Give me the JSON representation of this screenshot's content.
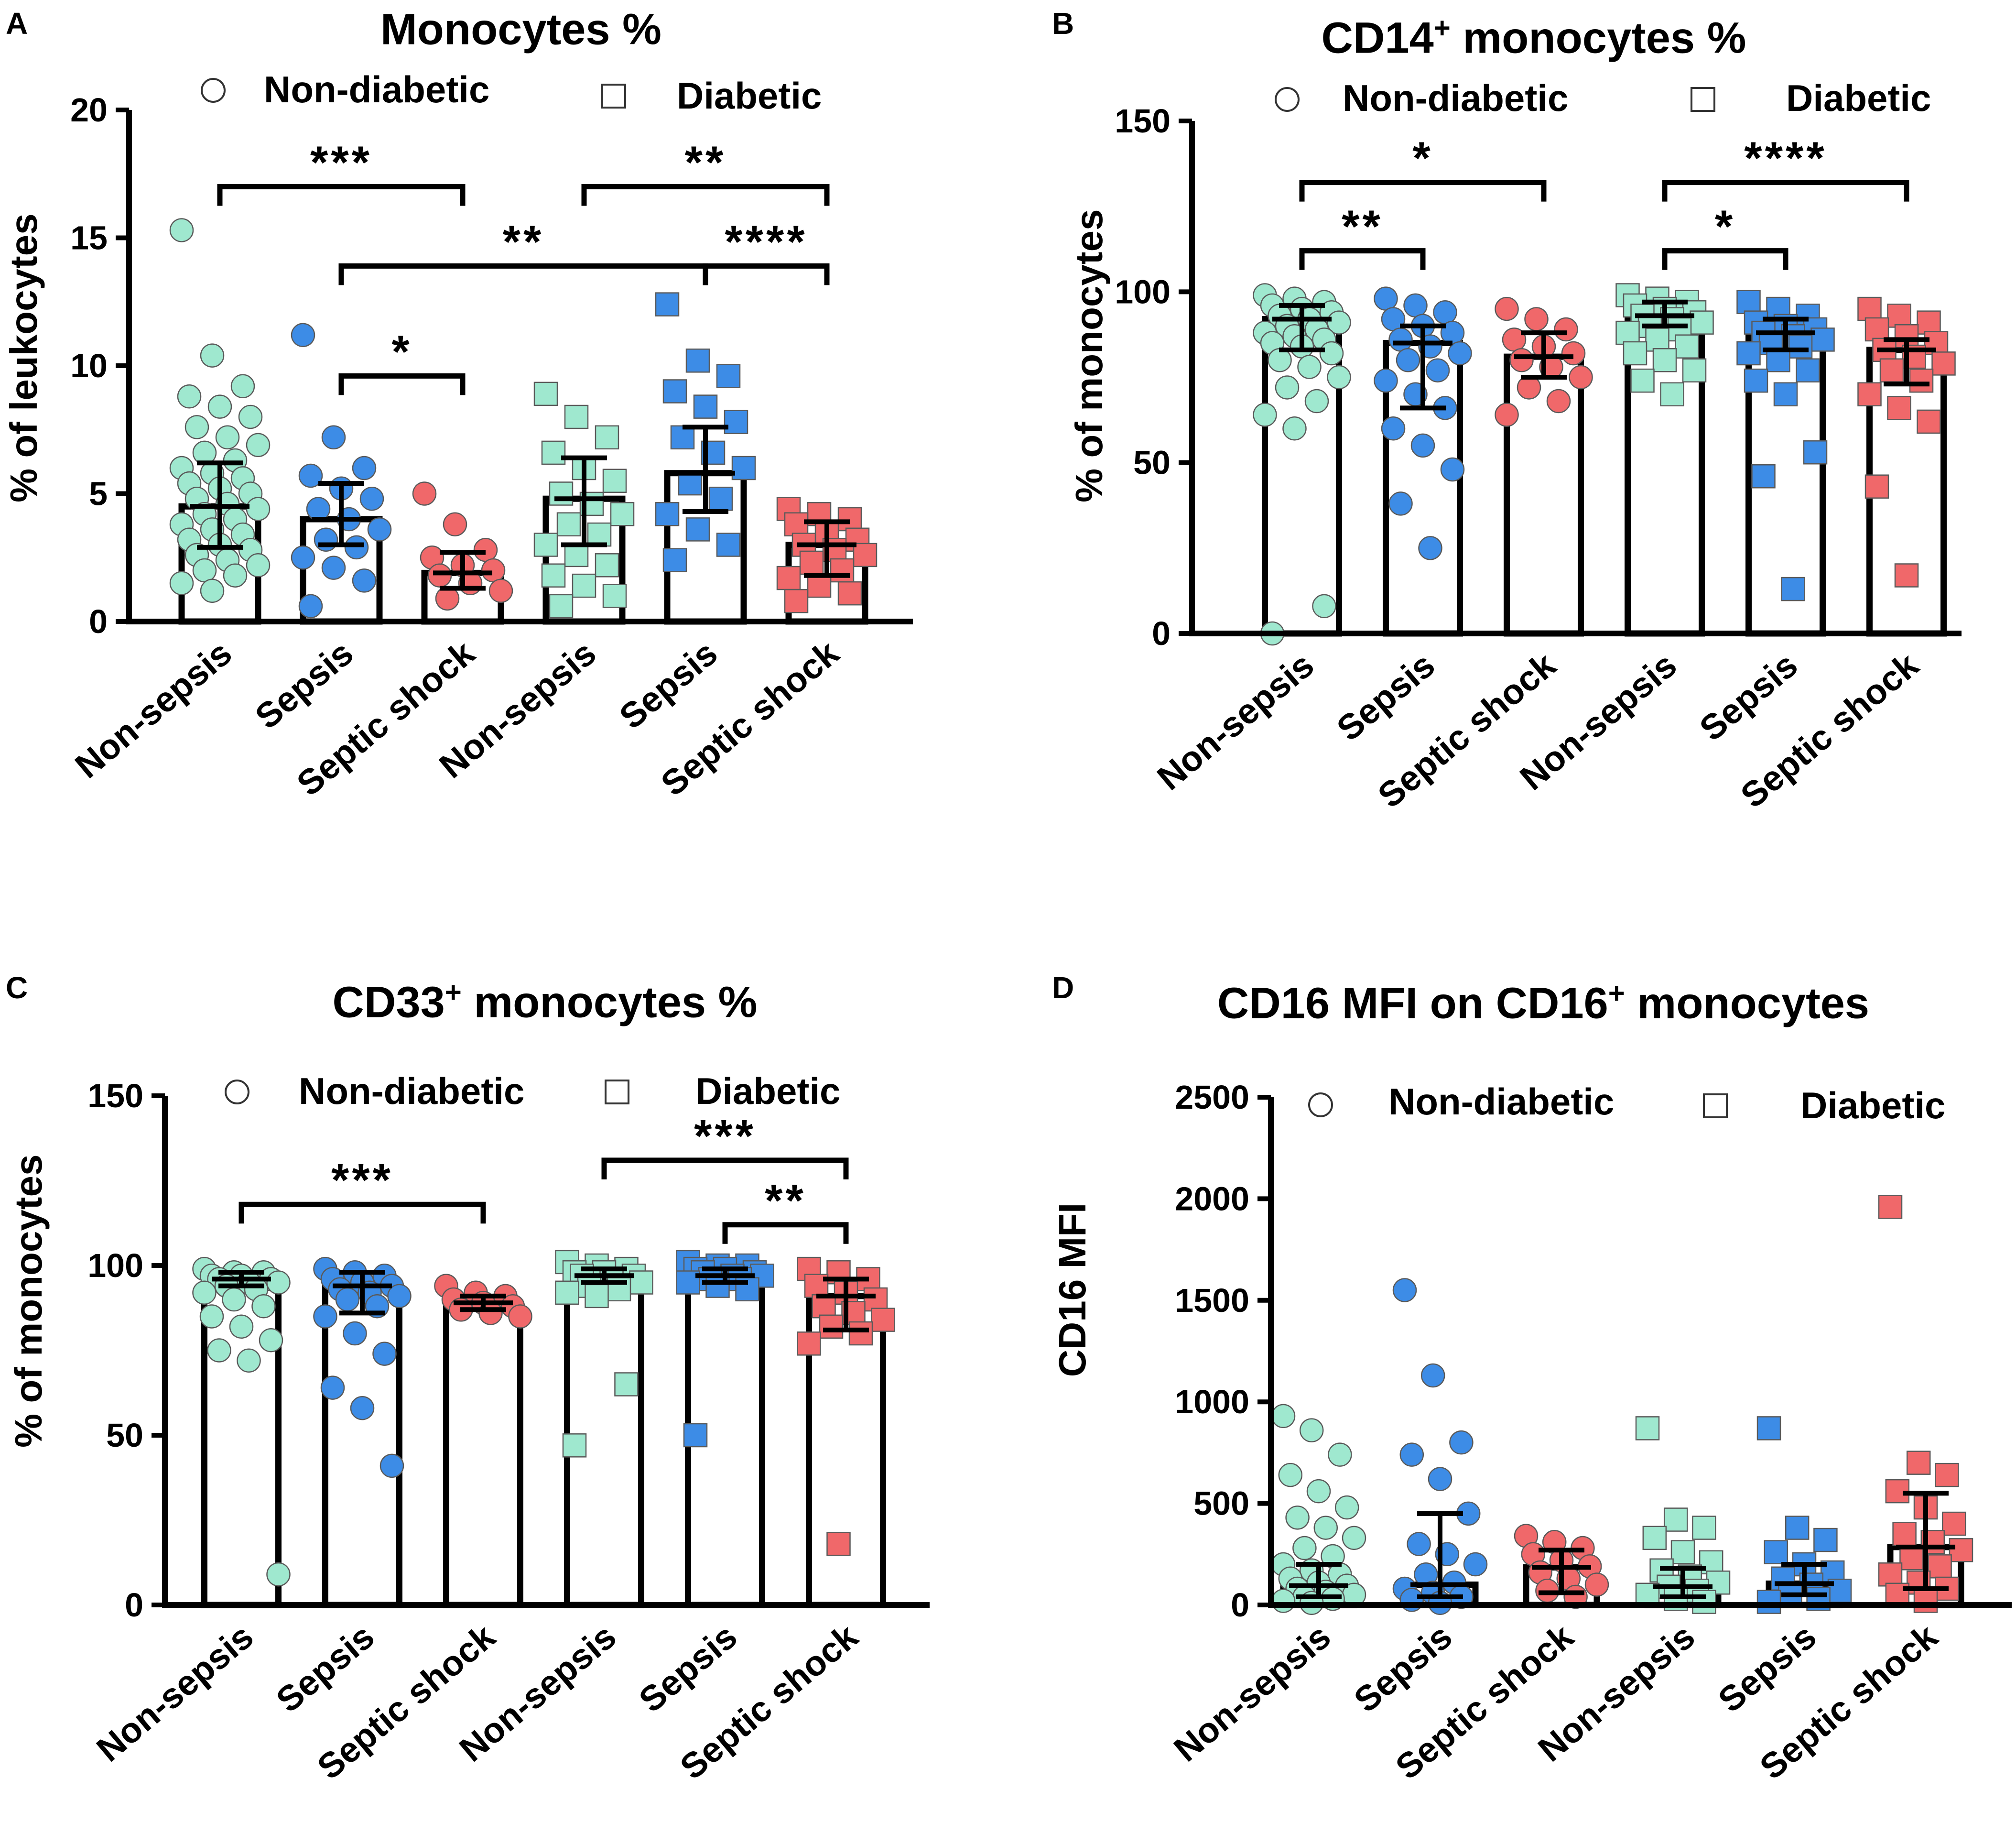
{
  "colors": {
    "non_sepsis": "#9FE8CF",
    "sepsis": "#3D8CE6",
    "septic_shock": "#F0686A",
    "axis": "#000000",
    "marker_edge": "#5a5a5a"
  },
  "legend": {
    "non_diabetic": "Non-diabetic",
    "diabetic": "Diabetic"
  },
  "chart_data": [
    {
      "panel": "A",
      "type": "bar",
      "title": "Monocytes %",
      "title_sup": "",
      "title_suffix": "",
      "ylabel": "% of leukocytes",
      "xlabel": "",
      "ylim": [
        0,
        20
      ],
      "yticks": [
        0,
        5,
        10,
        15,
        20
      ],
      "categories": [
        "Non-sepsis",
        "Sepsis",
        "Septic shock",
        "Non-sepsis",
        "Sepsis",
        "Septic shock"
      ],
      "groups": [
        "Non-diabetic",
        "Non-diabetic",
        "Non-diabetic",
        "Diabetic",
        "Diabetic",
        "Diabetic"
      ],
      "values": [
        4.5,
        4.0,
        1.9,
        4.8,
        5.8,
        3.0
      ],
      "error_low": [
        2.9,
        3.0,
        1.3,
        3.0,
        4.3,
        1.8
      ],
      "error_high": [
        6.2,
        5.4,
        2.7,
        6.4,
        7.6,
        3.9
      ],
      "points": [
        [
          15.3,
          10.4,
          9.2,
          8.8,
          8.4,
          8.0,
          7.6,
          7.2,
          6.9,
          6.6,
          6.3,
          6.0,
          5.8,
          5.6,
          5.4,
          5.2,
          5.0,
          4.8,
          4.6,
          4.4,
          4.2,
          4.0,
          3.8,
          3.6,
          3.4,
          3.2,
          3.0,
          2.8,
          2.6,
          2.4,
          2.2,
          2.0,
          1.8,
          1.5,
          1.2
        ],
        [
          11.2,
          7.2,
          6.0,
          5.7,
          5.2,
          4.8,
          4.4,
          4.0,
          3.6,
          3.2,
          2.9,
          2.5,
          2.1,
          1.6,
          0.6
        ],
        [
          5.0,
          3.8,
          2.8,
          2.5,
          2.2,
          2.0,
          1.8,
          1.5,
          1.2,
          0.9
        ],
        [
          8.9,
          8.0,
          7.2,
          6.6,
          6.0,
          5.5,
          5.0,
          4.6,
          4.2,
          3.8,
          3.4,
          3.0,
          2.6,
          2.2,
          1.8,
          1.4,
          1.0,
          0.6
        ],
        [
          12.4,
          10.2,
          9.6,
          9.0,
          8.4,
          7.8,
          7.2,
          6.6,
          6.0,
          5.4,
          4.8,
          4.2,
          3.6,
          3.0,
          2.4
        ],
        [
          4.4,
          4.2,
          4.0,
          3.8,
          3.5,
          3.2,
          3.0,
          2.8,
          2.6,
          2.3,
          2.0,
          1.7,
          1.4,
          1.1,
          0.8
        ]
      ],
      "annotations": [
        {
          "from": 0,
          "to": 2,
          "label": "***",
          "level": 17
        },
        {
          "from": 3,
          "to": 5,
          "label": "**",
          "level": 17
        },
        {
          "from": 1,
          "to": 4,
          "label": "**",
          "level": 13.9
        },
        {
          "from": 4,
          "to": 5,
          "label": "****",
          "level": 13.9
        },
        {
          "from": 1,
          "to": 2,
          "label": "*",
          "level": 9.6
        }
      ]
    },
    {
      "panel": "B",
      "type": "bar",
      "title": "CD14",
      "title_sup": "+",
      "title_suffix": " monocytes %",
      "ylabel": "% of monocytes",
      "xlabel": "",
      "ylim": [
        0,
        150
      ],
      "yticks": [
        0,
        50,
        100,
        150
      ],
      "categories": [
        "Non-sepsis",
        "Sepsis",
        "Septic shock",
        "Non-sepsis",
        "Sepsis",
        "Septic shock"
      ],
      "groups": [
        "Non-diabetic",
        "Non-diabetic",
        "Non-diabetic",
        "Diabetic",
        "Diabetic",
        "Diabetic"
      ],
      "values": [
        92,
        85,
        81,
        93,
        88,
        83
      ],
      "error_low": [
        83,
        66,
        75,
        90,
        83,
        73
      ],
      "error_high": [
        96,
        90,
        88,
        97,
        92,
        86
      ],
      "points": [
        [
          99,
          98,
          97,
          96,
          95,
          94,
          93,
          92,
          91,
          90,
          89,
          88,
          87,
          86,
          85,
          84,
          82,
          80,
          78,
          75,
          72,
          68,
          64,
          60,
          8,
          0
        ],
        [
          98,
          96,
          94,
          92,
          90,
          88,
          86,
          84,
          82,
          80,
          77,
          74,
          70,
          66,
          60,
          55,
          48,
          38,
          25
        ],
        [
          95,
          92,
          89,
          86,
          84,
          82,
          80,
          78,
          75,
          72,
          68,
          64
        ],
        [
          99,
          98,
          97,
          96,
          95,
          94,
          93,
          92,
          91,
          90,
          89,
          88,
          86,
          84,
          82,
          80,
          77,
          74,
          70
        ],
        [
          97,
          95,
          93,
          91,
          90,
          89,
          88,
          87,
          86,
          85,
          84,
          82,
          80,
          77,
          74,
          70,
          53,
          46,
          13
        ],
        [
          95,
          93,
          91,
          89,
          87,
          85,
          83,
          81,
          79,
          77,
          74,
          70,
          66,
          62,
          43,
          17
        ]
      ],
      "annotations": [
        {
          "from": 0,
          "to": 2,
          "label": "*",
          "level": 132
        },
        {
          "from": 3,
          "to": 5,
          "label": "****",
          "level": 132
        },
        {
          "from": 0,
          "to": 1,
          "label": "**",
          "level": 112
        },
        {
          "from": 3,
          "to": 4,
          "label": "*",
          "level": 112
        }
      ]
    },
    {
      "panel": "C",
      "type": "bar",
      "title": "CD33",
      "title_sup": "+",
      "title_suffix": " monocytes %",
      "ylabel": "% of monocytes",
      "xlabel": "",
      "ylim": [
        0,
        150
      ],
      "yticks": [
        0,
        50,
        100,
        150
      ],
      "categories": [
        "Non-sepsis",
        "Sepsis",
        "Septic shock",
        "Non-sepsis",
        "Sepsis",
        "Septic shock"
      ],
      "groups": [
        "Non-diabetic",
        "Non-diabetic",
        "Non-diabetic",
        "Diabetic",
        "Diabetic",
        "Diabetic"
      ],
      "values": [
        96,
        94,
        89,
        97,
        97,
        91
      ],
      "error_low": [
        94,
        86,
        87,
        95,
        95,
        81
      ],
      "error_high": [
        98,
        98,
        91,
        99,
        99,
        96
      ],
      "points": [
        [
          99,
          98,
          98,
          97,
          97,
          96,
          96,
          95,
          95,
          94,
          93,
          92,
          90,
          88,
          85,
          82,
          78,
          75,
          72,
          9
        ],
        [
          99,
          98,
          97,
          96,
          95,
          94,
          93,
          92,
          91,
          90,
          88,
          85,
          80,
          74,
          64,
          58,
          41
        ],
        [
          94,
          92,
          91,
          90,
          89,
          88,
          87,
          86,
          85
        ],
        [
          101,
          100,
          99,
          98,
          98,
          97,
          97,
          96,
          95,
          94,
          93,
          92,
          91,
          65,
          47
        ],
        [
          101,
          100,
          100,
          99,
          99,
          98,
          98,
          97,
          97,
          96,
          96,
          95,
          94,
          93,
          50
        ],
        [
          99,
          98,
          96,
          94,
          92,
          90,
          88,
          86,
          84,
          82,
          80,
          77,
          18
        ]
      ],
      "annotations": [
        {
          "from": 0,
          "to": 2,
          "label": "***",
          "level": 118
        },
        {
          "from": 3,
          "to": 5,
          "label": "***",
          "level": 131
        },
        {
          "from": 4,
          "to": 5,
          "label": "**",
          "level": 112
        }
      ]
    },
    {
      "panel": "D",
      "type": "bar",
      "title": "CD16 MFI on CD16",
      "title_sup": "+",
      "title_suffix": "  monocytes",
      "ylabel": "CD16 MFI",
      "xlabel": "",
      "ylim": [
        0,
        2500
      ],
      "yticks": [
        0,
        500,
        1000,
        1500,
        2000,
        2500
      ],
      "categories": [
        "Non-sepsis",
        "Sepsis",
        "Septic shock",
        "Non-sepsis",
        "Sepsis",
        "Septic shock"
      ],
      "groups": [
        "Non-diabetic",
        "Non-diabetic",
        "Non-diabetic",
        "Diabetic",
        "Diabetic",
        "Diabetic"
      ],
      "values": [
        95,
        100,
        185,
        90,
        105,
        285
      ],
      "error_low": [
        40,
        40,
        60,
        40,
        50,
        80
      ],
      "error_high": [
        200,
        450,
        270,
        180,
        200,
        550
      ],
      "points": [
        [
          930,
          860,
          740,
          640,
          560,
          480,
          430,
          380,
          330,
          280,
          240,
          200,
          170,
          150,
          130,
          110,
          95,
          80,
          65,
          50,
          40,
          30,
          20,
          10
        ],
        [
          1550,
          1130,
          800,
          740,
          620,
          450,
          300,
          250,
          200,
          150,
          110,
          80,
          60,
          40,
          25,
          10
        ],
        [
          340,
          310,
          280,
          250,
          220,
          190,
          160,
          130,
          100,
          70,
          40
        ],
        [
          870,
          420,
          380,
          330,
          260,
          210,
          170,
          140,
          110,
          90,
          70,
          50,
          30,
          15
        ],
        [
          870,
          380,
          320,
          260,
          200,
          160,
          130,
          100,
          70,
          50,
          30,
          15
        ],
        [
          1960,
          700,
          640,
          560,
          480,
          400,
          350,
          310,
          270,
          230,
          190,
          150,
          110,
          80,
          50,
          20
        ]
      ],
      "annotations": []
    }
  ]
}
